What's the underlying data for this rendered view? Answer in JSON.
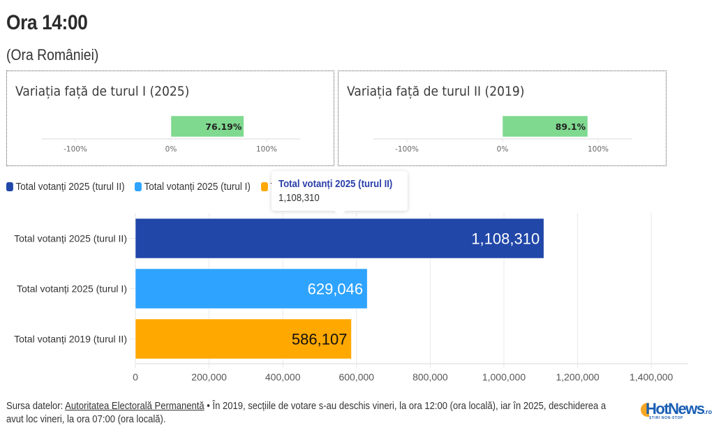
{
  "header": {
    "title": "Ora 14:00",
    "subtitle": "(Ora României)"
  },
  "chart_data": [
    {
      "type": "bar",
      "orientation": "horizontal",
      "title": "Variația față de turul I (2025)",
      "categories": [
        "Variația față de turul I (2025)"
      ],
      "values": [
        76.19
      ],
      "value_labels": [
        "76.19%"
      ],
      "xlim": [
        -150,
        150
      ],
      "ticks": [
        -100,
        0,
        100
      ],
      "tick_labels": [
        "-100%",
        "0%",
        "100%"
      ],
      "color": "#7fd98f",
      "grid": false
    },
    {
      "type": "bar",
      "orientation": "horizontal",
      "title": "Variația față de turul II (2019)",
      "categories": [
        "Variația față de turul II (2019)"
      ],
      "values": [
        89.1
      ],
      "value_labels": [
        "89.1%"
      ],
      "xlim": [
        -150,
        150
      ],
      "ticks": [
        -100,
        0,
        100
      ],
      "tick_labels": [
        "-100%",
        "0%",
        "100%"
      ],
      "color": "#7fd98f",
      "grid": false
    },
    {
      "type": "bar",
      "orientation": "horizontal",
      "title": "",
      "categories": [
        "Total votanți 2025 (turul II)",
        "Total votanți 2025 (turul I)",
        "Total votanți 2019 (turul II)"
      ],
      "values": [
        1108310,
        629046,
        586107
      ],
      "value_labels": [
        "1,108,310",
        "629,046",
        "586,107"
      ],
      "colors": [
        "#2147a8",
        "#2ea3ff",
        "#ffa800"
      ],
      "label_colors": [
        "#ffffff",
        "#ffffff",
        "#111111"
      ],
      "xlim": [
        0,
        1500000
      ],
      "ticks": [
        0,
        200000,
        400000,
        600000,
        800000,
        1000000,
        1200000,
        1400000
      ],
      "tick_labels": [
        "0",
        "200,000",
        "400,000",
        "600,000",
        "800,000",
        "1,000,000",
        "1,200,000",
        "1,400,000"
      ],
      "xlabel": "",
      "ylabel": "",
      "grid": true,
      "legend": {
        "placement": "top-left",
        "entries": [
          {
            "label": "Total votanți 2025 (turul II)",
            "color": "#2147a8"
          },
          {
            "label": "Total votanți 2025 (turul I)",
            "color": "#2ea3ff"
          },
          {
            "label": "Total votanți 2019 (turul II)",
            "color": "#ffa800"
          }
        ]
      }
    }
  ],
  "tooltip": {
    "title": "Total votanți 2025 (turul II)",
    "value": "1,108,310"
  },
  "footer": {
    "source_prefix": "Sursa datelor: ",
    "source_link": "Autoritatea Electorală Permanentă",
    "note": " • În 2019, secțiile de votare s-au deschis vineri, la ora 12:00 (ora locală), iar în 2025, deschiderea a avut loc vineri, la ora 07:00 (ora locală)."
  },
  "logo": {
    "name": "HotNews",
    "suffix": ".ro",
    "tagline": "ȘTIRI NON-STOP"
  }
}
